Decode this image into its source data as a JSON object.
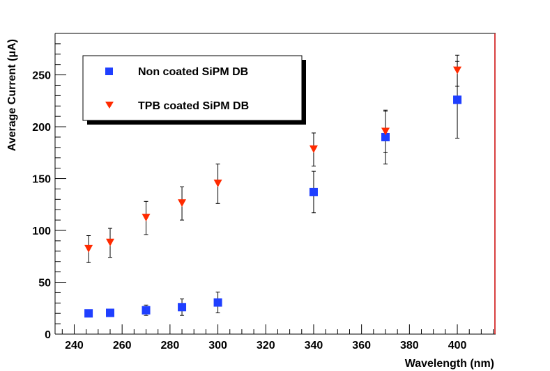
{
  "chart_data": {
    "type": "scatter",
    "title": "",
    "xlabel": "Wavelength (nm)",
    "ylabel": "Average Current (μA)",
    "xlim": [
      232,
      416
    ],
    "ylim": [
      0,
      290
    ],
    "xticks": [
      240,
      260,
      280,
      300,
      320,
      340,
      360,
      380,
      400
    ],
    "yticks": [
      0,
      50,
      100,
      150,
      200,
      250
    ],
    "x_tick_labels": [
      "240",
      "260",
      "280",
      "300",
      "320",
      "340",
      "360",
      "380",
      "400"
    ],
    "y_tick_labels": [
      "0",
      "50",
      "100",
      "150",
      "200",
      "250"
    ],
    "legend_position": "top-left",
    "colors": {
      "non_coated": "#1f3fff",
      "tpb": "#ff2a00",
      "frame": "#000000",
      "right_edge": "#cc0000"
    },
    "series": [
      {
        "name": "Non coated SiPM DB",
        "marker": "square",
        "color": "#1f3fff",
        "x": [
          246,
          255,
          270,
          285,
          300,
          340,
          370,
          400
        ],
        "y": [
          20,
          20.5,
          23,
          26,
          30.5,
          137,
          190,
          226
        ],
        "err": [
          1.5,
          1.5,
          5,
          8,
          10,
          20,
          26,
          37
        ]
      },
      {
        "name": "TPB coated SiPM DB",
        "marker": "triangle-down",
        "color": "#ff2a00",
        "x": [
          246,
          255,
          270,
          285,
          300,
          340,
          370,
          400
        ],
        "y": [
          82,
          88,
          112,
          126,
          145,
          178,
          195,
          254
        ],
        "err": [
          13,
          14,
          16,
          16,
          19,
          16,
          20,
          15
        ]
      }
    ]
  }
}
